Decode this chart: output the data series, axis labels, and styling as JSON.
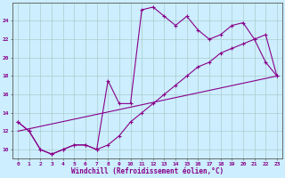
{
  "background_color": "#cceeff",
  "grid_color": "#aacccc",
  "line_color": "#880088",
  "xlabel": "Windchill (Refroidissement éolien,°C)",
  "xlim": [
    -0.5,
    23.5
  ],
  "ylim": [
    9.0,
    26.0
  ],
  "yticks": [
    10,
    12,
    14,
    16,
    18,
    20,
    22,
    24
  ],
  "xticks": [
    0,
    1,
    2,
    3,
    4,
    5,
    6,
    7,
    8,
    9,
    10,
    11,
    12,
    13,
    14,
    15,
    16,
    17,
    18,
    19,
    20,
    21,
    22,
    23
  ],
  "line1_x": [
    0,
    1,
    2,
    3,
    4,
    5,
    6,
    7,
    8,
    9,
    10,
    11,
    12,
    13,
    14,
    15,
    16,
    17,
    18,
    19,
    20,
    21,
    22,
    23
  ],
  "line1_y": [
    13,
    12,
    10,
    9.5,
    10,
    10.5,
    10.5,
    10,
    17.5,
    15,
    15,
    25.2,
    25.5,
    24.5,
    23.5,
    24.5,
    23,
    22,
    22.5,
    23.5,
    23.8,
    22,
    19.5,
    18
  ],
  "line2_x": [
    0,
    1,
    2,
    3,
    4,
    5,
    6,
    7,
    8,
    9,
    10,
    11,
    12,
    13,
    14,
    15,
    16,
    17,
    18,
    19,
    20,
    21,
    22,
    23
  ],
  "line2_y": [
    13,
    12,
    10,
    9.5,
    10,
    10.5,
    10.5,
    10,
    10.5,
    11.5,
    13,
    14,
    15,
    16,
    17,
    18,
    19,
    19.5,
    20.5,
    21,
    21.5,
    22,
    22.5,
    18
  ],
  "line3_x": [
    0,
    23
  ],
  "line3_y": [
    12,
    18
  ]
}
